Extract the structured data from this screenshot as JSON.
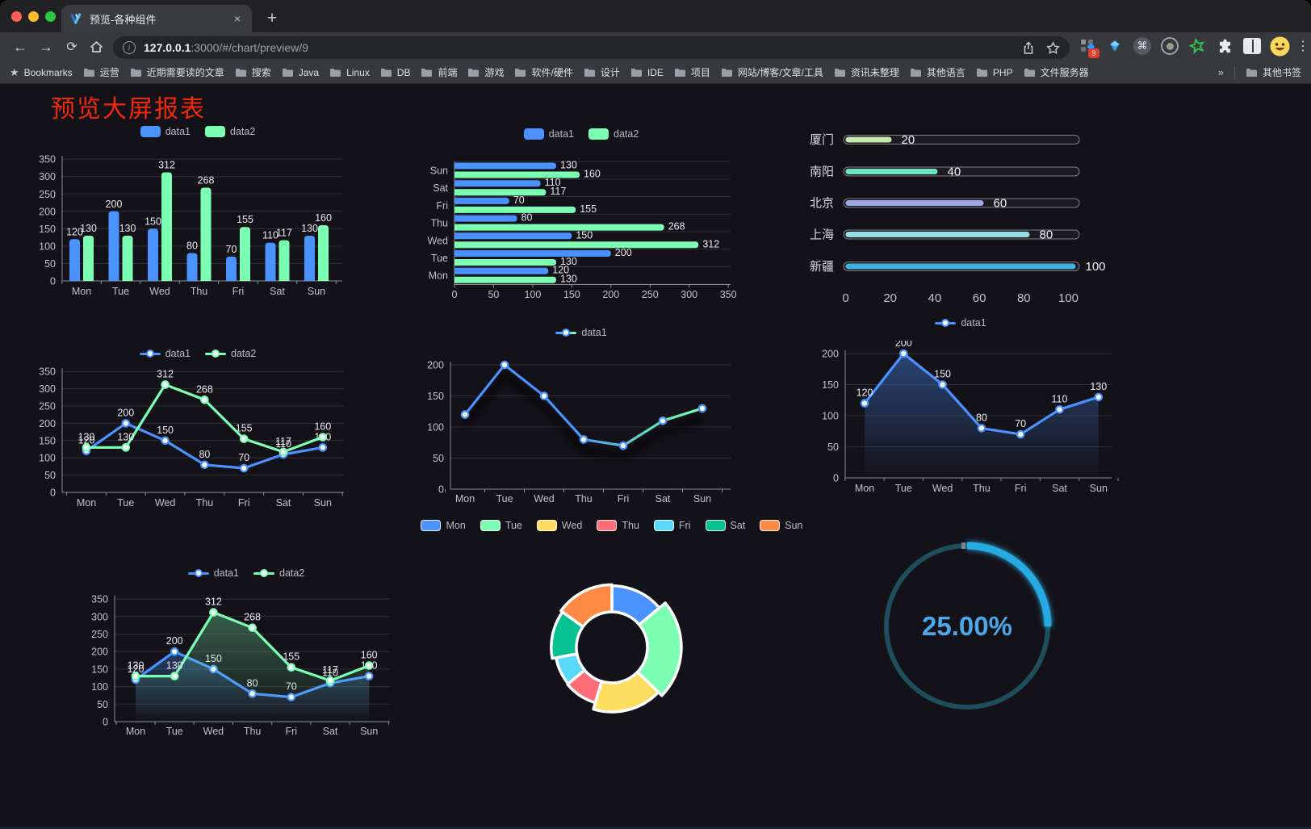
{
  "browser": {
    "tab_title": "预览-各种组件",
    "new_tab_plus": "+",
    "close_glyph": "×",
    "url_host": "127.0.0.1",
    "url_rest": ":3000/#/chart/preview/9",
    "bookmarks_label": "Bookmarks",
    "bookmark_folders": [
      "运营",
      "近期需要读的文章",
      "搜索",
      "Java",
      "Linux",
      "DB",
      "前端",
      "游戏",
      "软件/硬件",
      "设计",
      "IDE",
      "项目",
      "网站/博客/文章/工具",
      "资讯未整理",
      "其他语言",
      "PHP",
      "文件服务器"
    ],
    "overflow_chevron": "»",
    "other_bookmarks": "其他书签",
    "extension_badge": "9",
    "menu_glyph": "⋮"
  },
  "page": {
    "title": "预览大屏报表",
    "title_color": "#f5270b",
    "background": "#141219"
  },
  "chart_data": [
    {
      "id": "bar-vertical",
      "type": "bar",
      "categories": [
        "Mon",
        "Tue",
        "Wed",
        "Thu",
        "Fri",
        "Sat",
        "Sun"
      ],
      "series": [
        {
          "name": "data1",
          "color": "#4992ff",
          "values": [
            120,
            200,
            150,
            80,
            70,
            110,
            130
          ]
        },
        {
          "name": "data2",
          "color": "#7cffb2",
          "values": [
            130,
            130,
            312,
            268,
            155,
            117,
            160
          ]
        }
      ],
      "legend": [
        "data1",
        "data2"
      ],
      "legend_position": "top",
      "ylim": [
        0,
        350
      ],
      "ytick_step": 50,
      "grid": true
    },
    {
      "id": "bar-horizontal",
      "type": "bar",
      "orientation": "horizontal",
      "categories_bottom_to_top": [
        "Mon",
        "Tue",
        "Wed",
        "Thu",
        "Fri",
        "Sat",
        "Sun"
      ],
      "series": [
        {
          "name": "data1",
          "color": "#4992ff",
          "values": [
            120,
            200,
            150,
            80,
            70,
            110,
            130
          ]
        },
        {
          "name": "data2",
          "color": "#7cffb2",
          "values": [
            130,
            130,
            312,
            268,
            155,
            117,
            160
          ]
        }
      ],
      "legend": [
        "data1",
        "data2"
      ],
      "legend_position": "top",
      "xlim": [
        0,
        350
      ],
      "xtick_step": 50
    },
    {
      "id": "progress-bars",
      "type": "bar",
      "orientation": "horizontal-progress",
      "categories": [
        "厦门",
        "南阳",
        "北京",
        "上海",
        "新疆"
      ],
      "values": [
        20,
        40,
        60,
        80,
        100
      ],
      "colors": [
        "#c4ebad",
        "#6be6c1",
        "#a0a7e6",
        "#96dee8",
        "#3fb1e3"
      ],
      "xlim": [
        0,
        100
      ],
      "xtick_step": 20
    },
    {
      "id": "line-two",
      "type": "line",
      "categories": [
        "Mon",
        "Tue",
        "Wed",
        "Thu",
        "Fri",
        "Sat",
        "Sun"
      ],
      "series": [
        {
          "name": "data1",
          "color": "#4992ff",
          "values": [
            120,
            200,
            150,
            80,
            70,
            110,
            130
          ]
        },
        {
          "name": "data2",
          "color": "#7cffb2",
          "values": [
            130,
            130,
            312,
            268,
            155,
            117,
            160
          ]
        }
      ],
      "legend": [
        "data1",
        "data2"
      ],
      "legend_position": "top",
      "ylim": [
        0,
        350
      ],
      "ytick_step": 50,
      "point_labels": true
    },
    {
      "id": "line-gradient",
      "type": "line",
      "categories": [
        "Mon",
        "Tue",
        "Wed",
        "Thu",
        "Fri",
        "Sat",
        "Sun"
      ],
      "series": [
        {
          "name": "data1",
          "color_gradient": [
            "#4992ff",
            "#7cffb2"
          ],
          "values": [
            120,
            200,
            150,
            80,
            70,
            110,
            130
          ]
        }
      ],
      "legend": [
        "data1"
      ],
      "legend_position": "top",
      "ylim": [
        0,
        200
      ],
      "ytick_step": 50,
      "point_labels": false
    },
    {
      "id": "line-area-single",
      "type": "area",
      "categories": [
        "Mon",
        "Tue",
        "Wed",
        "Thu",
        "Fri",
        "Sat",
        "Sun"
      ],
      "series": [
        {
          "name": "data1",
          "color": "#4992ff",
          "values": [
            120,
            200,
            150,
            80,
            70,
            110,
            130
          ]
        }
      ],
      "legend": [
        "data1"
      ],
      "legend_position": "top",
      "ylim": [
        0,
        200
      ],
      "ytick_step": 50,
      "point_labels": true
    },
    {
      "id": "line-area-two",
      "type": "area",
      "categories": [
        "Mon",
        "Tue",
        "Wed",
        "Thu",
        "Fri",
        "Sat",
        "Sun"
      ],
      "series": [
        {
          "name": "data1",
          "color": "#4992ff",
          "values": [
            120,
            200,
            150,
            80,
            70,
            110,
            130
          ]
        },
        {
          "name": "data2",
          "color": "#7cffb2",
          "values": [
            130,
            130,
            312,
            268,
            155,
            117,
            160
          ]
        }
      ],
      "legend": [
        "data1",
        "data2"
      ],
      "legend_position": "top",
      "ylim": [
        0,
        350
      ],
      "ytick_step": 50,
      "point_labels": true
    },
    {
      "id": "rose-donut",
      "type": "pie",
      "rose": true,
      "categories": [
        "Mon",
        "Tue",
        "Wed",
        "Thu",
        "Fri",
        "Sat",
        "Sun"
      ],
      "values": [
        120,
        200,
        150,
        80,
        70,
        110,
        130
      ],
      "colors": [
        "#4992ff",
        "#7cffb2",
        "#fddd60",
        "#ff6e76",
        "#58d9f9",
        "#05c091",
        "#ff8a45"
      ],
      "legend_position": "top"
    },
    {
      "id": "gauge",
      "type": "gauge",
      "value": 25,
      "display": "25.00%",
      "progress_color": "#28aae1",
      "track_color": "#1e4d5b",
      "text_color": "#4ba7e9"
    }
  ]
}
